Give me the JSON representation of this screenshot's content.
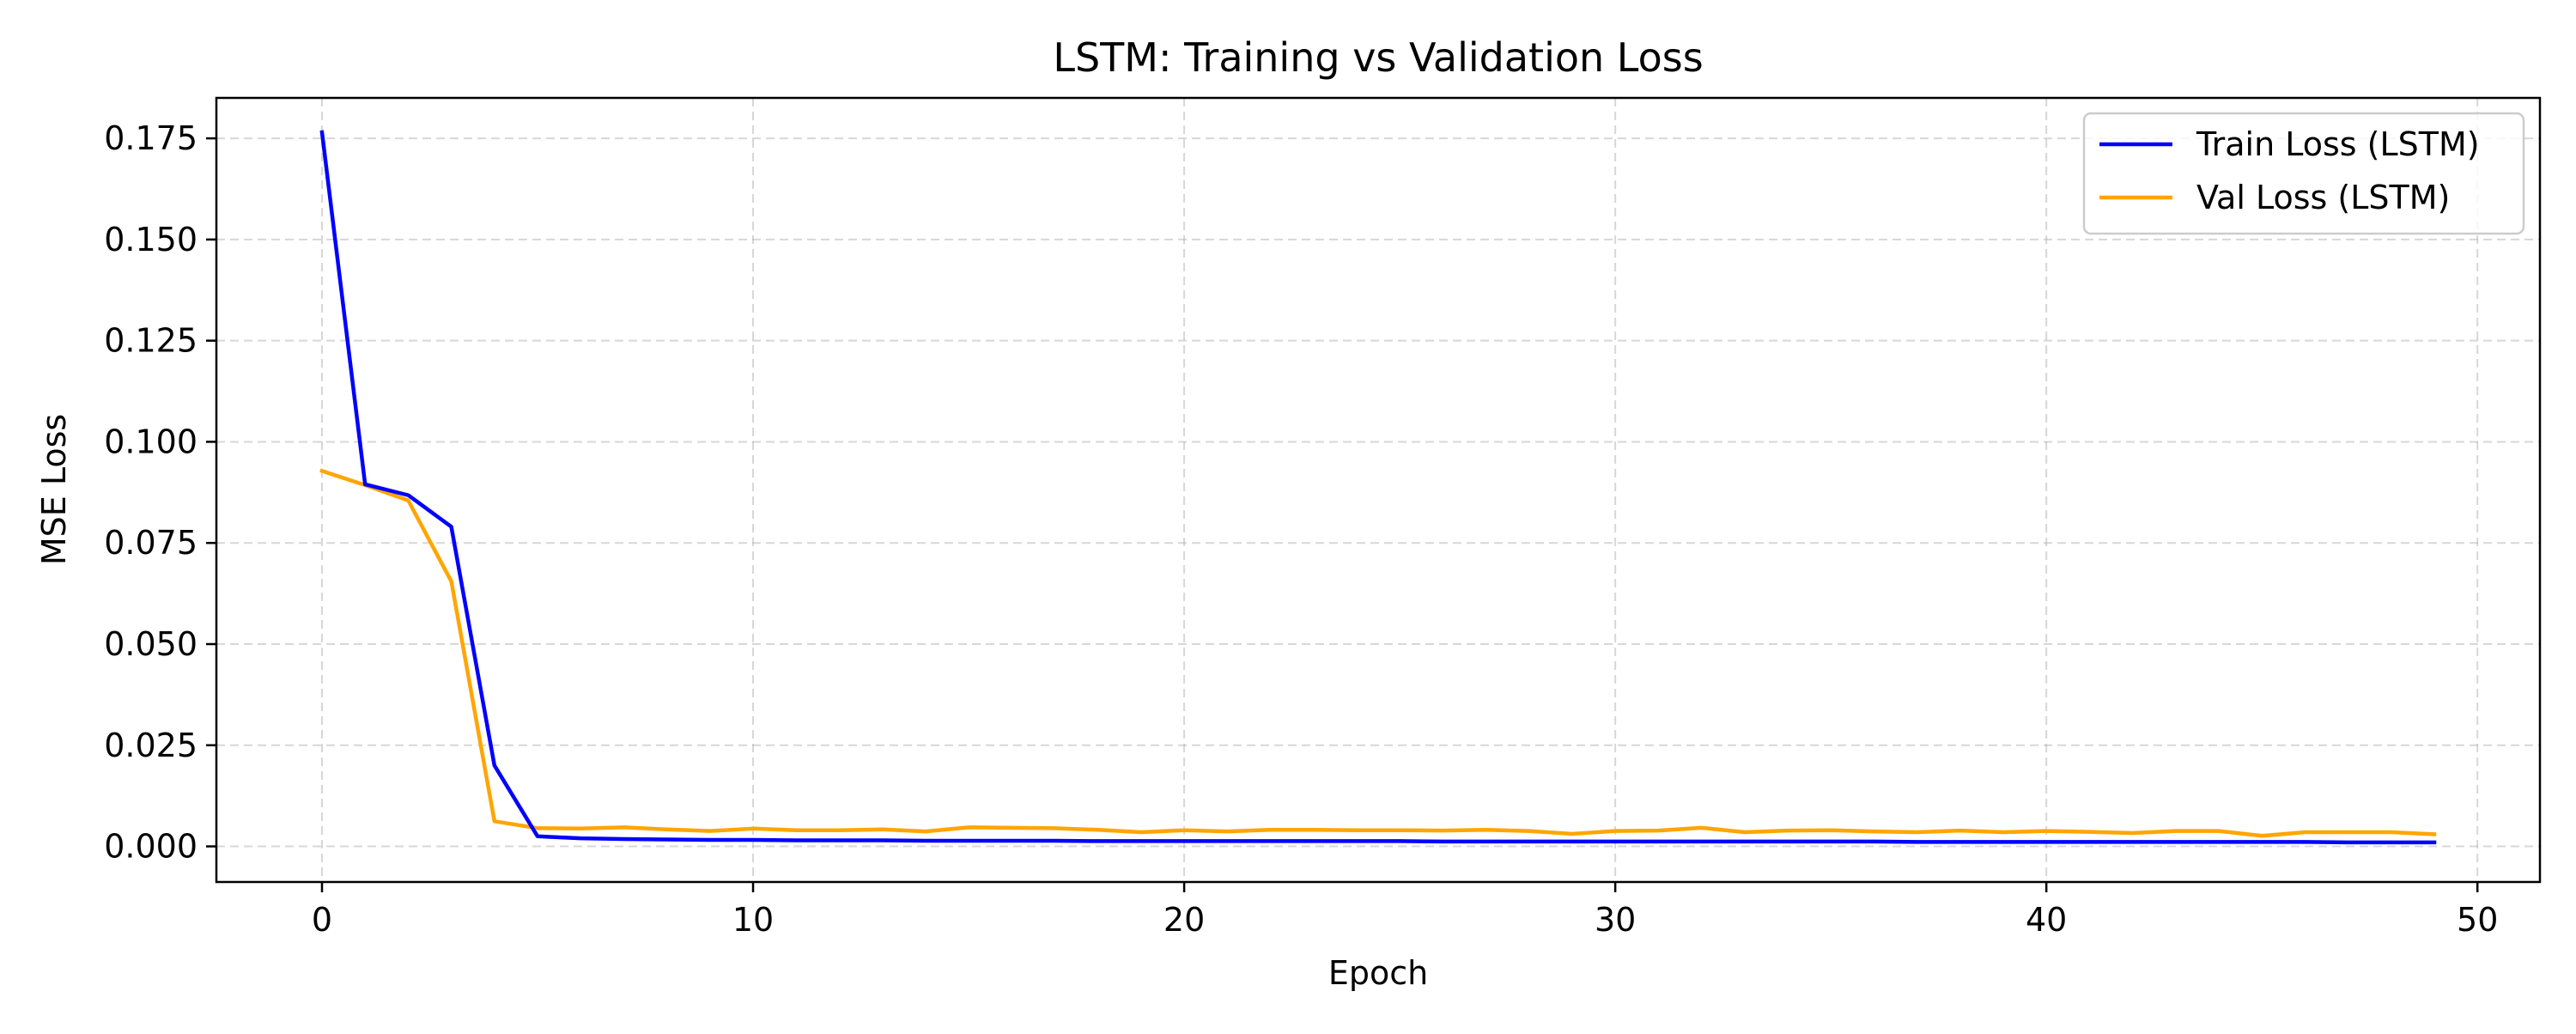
{
  "chart_data": {
    "type": "line",
    "title": "LSTM: Training vs Validation Loss",
    "xlabel": "Epoch",
    "ylabel": "MSE Loss",
    "xlim": [
      -2.45,
      51.45
    ],
    "ylim": [
      -0.0088,
      0.185
    ],
    "xticks": [
      0,
      10,
      20,
      30,
      40,
      50
    ],
    "xtick_labels": [
      "0",
      "10",
      "20",
      "30",
      "40",
      "50"
    ],
    "yticks": [
      0,
      0.025,
      0.05,
      0.075,
      0.1,
      0.125,
      0.15,
      0.175
    ],
    "ytick_labels": [
      "0.000",
      "0.025",
      "0.050",
      "0.075",
      "0.100",
      "0.125",
      "0.150",
      "0.175"
    ],
    "grid": true,
    "legend_position": "top-right",
    "x": [
      0,
      1,
      2,
      3,
      4,
      5,
      6,
      7,
      8,
      9,
      10,
      11,
      12,
      13,
      14,
      15,
      16,
      17,
      18,
      19,
      20,
      21,
      22,
      23,
      24,
      25,
      26,
      27,
      28,
      29,
      30,
      31,
      32,
      33,
      34,
      35,
      36,
      37,
      38,
      39,
      40,
      41,
      42,
      43,
      44,
      45,
      46,
      47,
      48,
      49
    ],
    "series": [
      {
        "name": "Train Loss (LSTM)",
        "color": "#0000ff",
        "values": [
          0.1765,
          0.0895,
          0.0868,
          0.079,
          0.02,
          0.0025,
          0.002,
          0.0018,
          0.0017,
          0.0016,
          0.0016,
          0.0015,
          0.0015,
          0.0015,
          0.0014,
          0.0014,
          0.0014,
          0.0014,
          0.0013,
          0.0013,
          0.0013,
          0.0013,
          0.0013,
          0.0013,
          0.0013,
          0.0013,
          0.0012,
          0.0012,
          0.0012,
          0.0012,
          0.0012,
          0.0012,
          0.0012,
          0.0012,
          0.0012,
          0.0012,
          0.0012,
          0.0011,
          0.0011,
          0.0011,
          0.0011,
          0.0011,
          0.0011,
          0.0011,
          0.0011,
          0.0011,
          0.0011,
          0.001,
          0.001,
          0.001
        ]
      },
      {
        "name": "Val Loss (LSTM)",
        "color": "#ffa500",
        "values": [
          0.0928,
          0.0893,
          0.0855,
          0.0655,
          0.0062,
          0.0045,
          0.0044,
          0.0047,
          0.0042,
          0.0038,
          0.0044,
          0.004,
          0.004,
          0.0042,
          0.0037,
          0.0047,
          0.0046,
          0.0045,
          0.0041,
          0.0035,
          0.004,
          0.0037,
          0.0041,
          0.0041,
          0.004,
          0.004,
          0.0039,
          0.0041,
          0.0038,
          0.0031,
          0.0038,
          0.0039,
          0.0046,
          0.0035,
          0.0039,
          0.004,
          0.0037,
          0.0035,
          0.0039,
          0.0035,
          0.0038,
          0.0036,
          0.0033,
          0.0038,
          0.0038,
          0.0026,
          0.0035,
          0.0035,
          0.0035,
          0.003
        ]
      }
    ]
  }
}
